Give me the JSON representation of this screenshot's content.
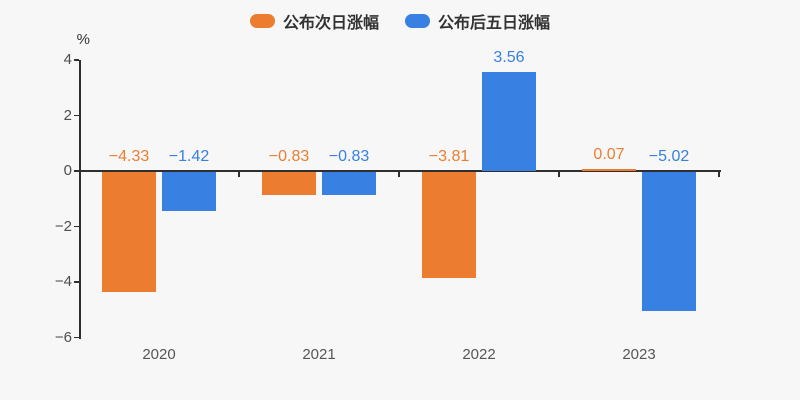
{
  "colors": {
    "series_next_day": "#ec7d30",
    "series_five_day": "#3880e2",
    "axis": "#2f2f2f",
    "tick_label": "#4d4d4d",
    "background": "#f7f7f7"
  },
  "legend": [
    {
      "label": "公布次日涨幅",
      "color": "#ec7d30"
    },
    {
      "label": "公布后五日涨幅",
      "color": "#3880e2"
    }
  ],
  "y_axis": {
    "unit": "%",
    "tick_labels": [
      "4",
      "2",
      "0",
      "−2",
      "−4",
      "−6"
    ]
  },
  "chart_data": {
    "type": "bar",
    "title": "",
    "categories": [
      "2020",
      "2021",
      "2022",
      "2023"
    ],
    "series": [
      {
        "name": "公布次日涨幅",
        "color": "#ec7d30",
        "values": [
          -4.33,
          -0.83,
          -3.81,
          0.07
        ],
        "labels": [
          "−4.33",
          "−0.83",
          "−3.81",
          "0.07"
        ]
      },
      {
        "name": "公布后五日涨幅",
        "color": "#3880e2",
        "values": [
          -1.42,
          -0.83,
          3.56,
          -5.02
        ],
        "labels": [
          "−1.42",
          "−0.83",
          "3.56",
          "−5.02"
        ]
      }
    ],
    "xlabel": "",
    "ylabel": "%",
    "ylim": [
      -6,
      4
    ],
    "yticks": [
      4,
      2,
      0,
      -2,
      -4,
      -6
    ],
    "grid": false,
    "legend_position": "top",
    "value_labels": true
  }
}
